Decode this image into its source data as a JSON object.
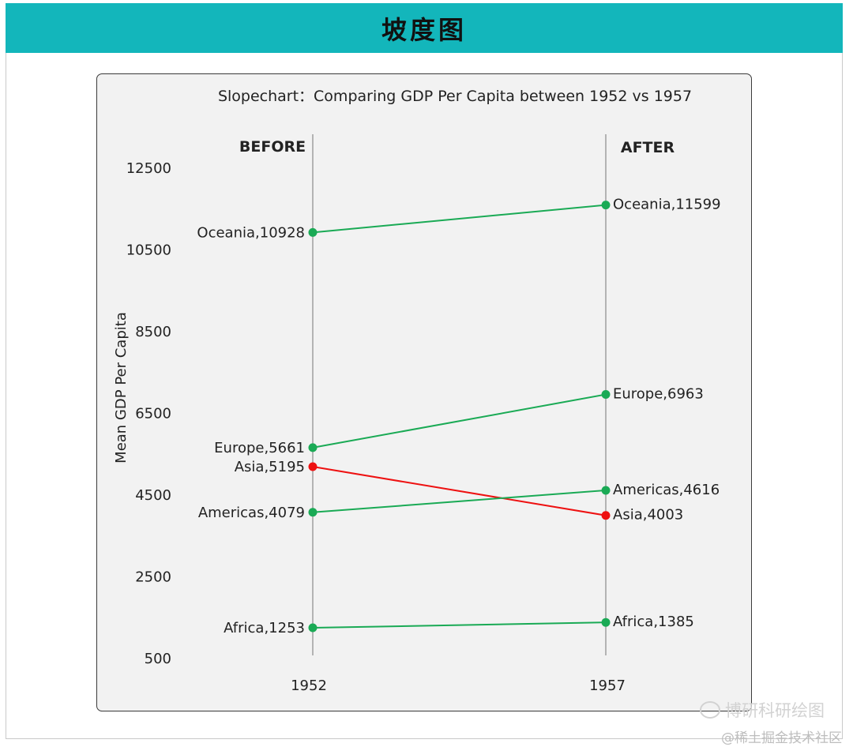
{
  "banner": {
    "title": "坡度图"
  },
  "watermark": {
    "label": "博研科研绘图",
    "icon": "wechat-icon"
  },
  "footer": {
    "label": "@稀土掘金技术社区"
  },
  "colors": {
    "banner": "#13b6bb",
    "increase": "#1aaa55",
    "decrease": "#ee1111"
  },
  "chart_data": {
    "type": "line",
    "title": "Slopechart：Comparing GDP Per Capita between 1952 vs 1957",
    "ylabel": "Mean GDP Per Capita",
    "xlabel": "",
    "x": [
      "1952",
      "1957"
    ],
    "column_headers": [
      "BEFORE",
      "AFTER"
    ],
    "ylim": [
      500,
      13000
    ],
    "yticks": [
      500,
      2500,
      4500,
      6500,
      8500,
      10500,
      12500
    ],
    "grid": false,
    "series": [
      {
        "name": "Oceania",
        "values": [
          10928,
          11599
        ],
        "labels": [
          "Oceania,10928",
          "Oceania,11599"
        ],
        "trend": "up"
      },
      {
        "name": "Europe",
        "values": [
          5661,
          6963
        ],
        "labels": [
          "Europe,5661",
          "Europe,6963"
        ],
        "trend": "up"
      },
      {
        "name": "Asia",
        "values": [
          5195,
          4003
        ],
        "labels": [
          "Asia,5195",
          "Asia,4003"
        ],
        "trend": "down"
      },
      {
        "name": "Americas",
        "values": [
          4079,
          4616
        ],
        "labels": [
          "Americas,4079",
          "Americas,4616"
        ],
        "trend": "up"
      },
      {
        "name": "Africa",
        "values": [
          1253,
          1385
        ],
        "labels": [
          "Africa,1253",
          "Africa,1385"
        ],
        "trend": "up"
      }
    ]
  }
}
